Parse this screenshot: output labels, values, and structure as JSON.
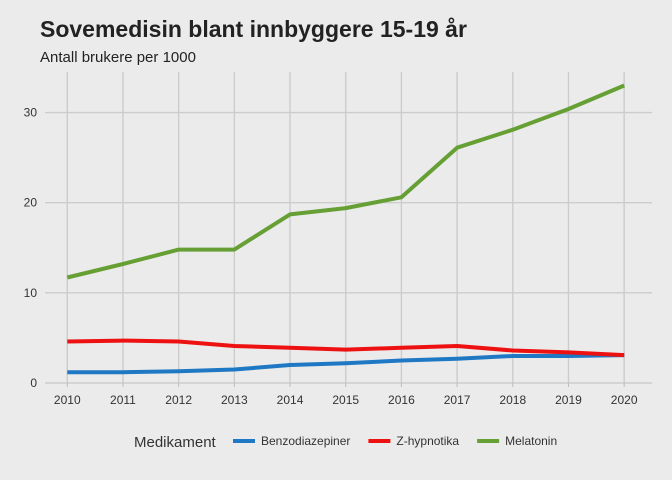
{
  "chart_data": {
    "type": "line",
    "title": "Sovemedisin blant innbyggere 15-19 år",
    "subtitle": "Antall brukere per 1000",
    "xlabel": "",
    "ylabel": "",
    "x": [
      2010,
      2011,
      2012,
      2013,
      2014,
      2015,
      2016,
      2017,
      2018,
      2019,
      2020
    ],
    "xlim": [
      2009.6,
      2020.5
    ],
    "ylim": [
      0,
      34.5
    ],
    "yticks": [
      0,
      10,
      20,
      30
    ],
    "grid": true,
    "legend_title": "Medikament",
    "legend_position": "bottom",
    "series": [
      {
        "name": "Benzodiazepiner",
        "color": "#1f78c4",
        "values": [
          1.2,
          1.2,
          1.3,
          1.5,
          2.0,
          2.2,
          2.5,
          2.7,
          3.0,
          3.0,
          3.1
        ]
      },
      {
        "name": "Z-hypnotika",
        "color": "#ee1111",
        "values": [
          4.6,
          4.7,
          4.6,
          4.1,
          3.9,
          3.7,
          3.9,
          4.1,
          3.6,
          3.4,
          3.1
        ]
      },
      {
        "name": "Melatonin",
        "color": "#66a035",
        "values": [
          11.7,
          13.2,
          14.8,
          14.8,
          18.7,
          19.4,
          20.6,
          26.1,
          28.1,
          30.4,
          33.0
        ]
      }
    ]
  }
}
